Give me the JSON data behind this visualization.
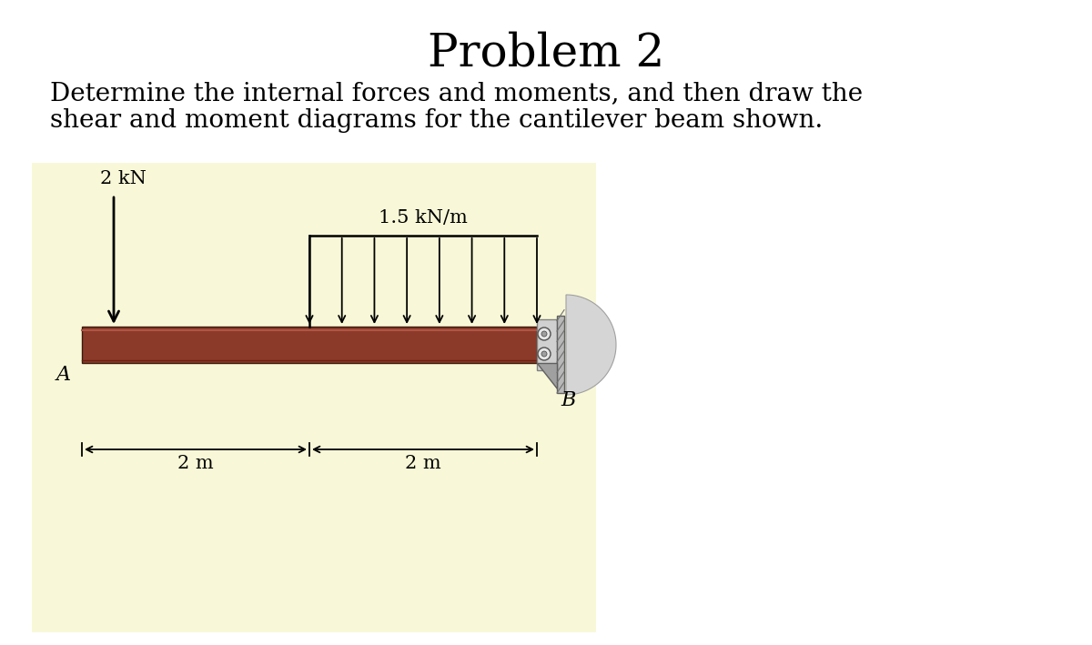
{
  "title": "Problem 2",
  "title_fontsize": 36,
  "title_fontfamily": "serif",
  "problem_text_line1": "Determine the internal forces and moments, and then draw the",
  "problem_text_line2": "shear and moment diagrams for the cantilever beam shown.",
  "text_fontsize": 20,
  "text_fontfamily": "serif",
  "diagram_bg_color": "#f8f8d8",
  "beam_color": "#8B3A2A",
  "beam_top_highlight": "#b05545",
  "beam_bottom_shadow": "#5a1a0a",
  "point_load_label": "2 kN",
  "dist_load_label": "1.5 kN/m",
  "label_A": "A",
  "label_B": "B",
  "dim1_label": "2 m",
  "dim2_label": "2 m",
  "wall_plate_color": "#c0c0c0",
  "wall_bracket_color": "#909090",
  "wall_arc_color": "#c8c8c8",
  "bolt_color": "#e0e0e0"
}
